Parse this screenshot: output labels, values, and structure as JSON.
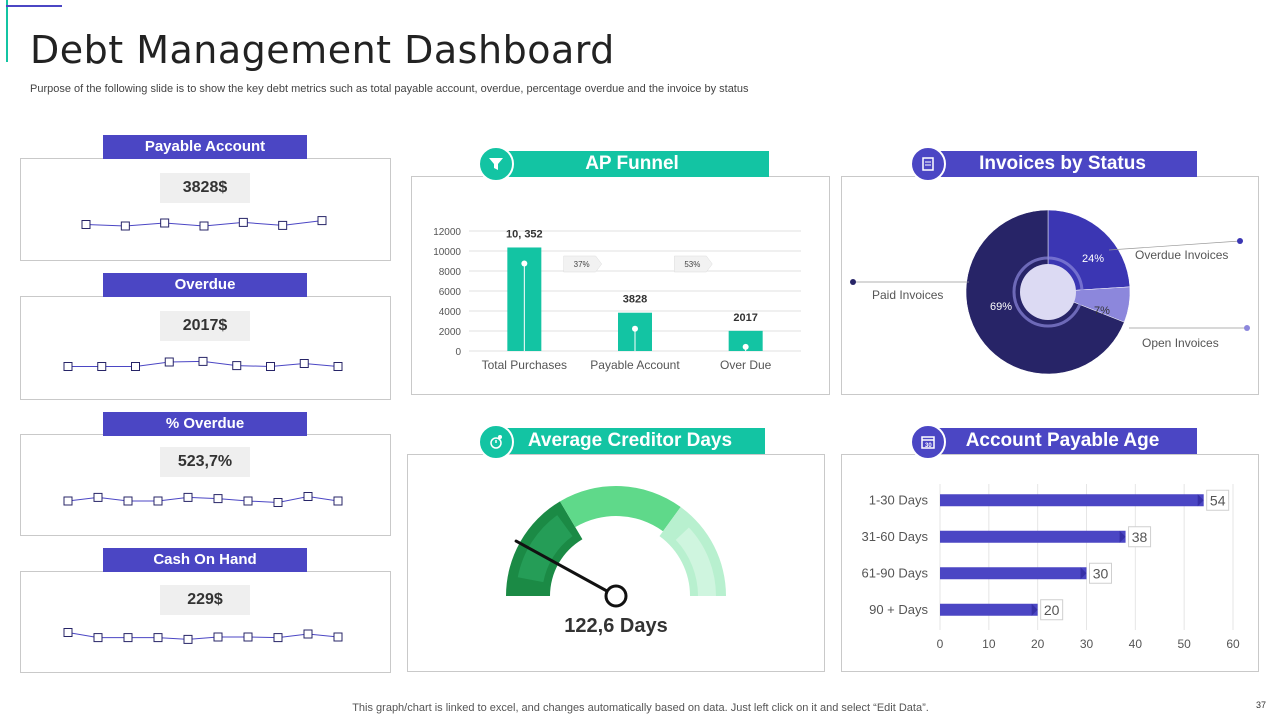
{
  "page": {
    "title": "Debt Management Dashboard",
    "subtitle": "Purpose of the following slide is to show the key debt metrics such as total payable account, overdue, percentage overdue and the invoice by status",
    "footer": "This graph/chart is linked to excel,  and changes automatically based on data. Just left click on it and select “Edit Data”.",
    "page_number": "37"
  },
  "colors": {
    "purple": "#4b46c4",
    "teal": "#13c4a3",
    "navy": "#272467",
    "gauge_dark": "#1b8a45",
    "gauge_mid": "#5fd98a",
    "gauge_light": "#b8f0cf"
  },
  "kpis": [
    {
      "label": "Payable Account",
      "value": "3828$",
      "spark": [
        0.55,
        0.5,
        0.6,
        0.5,
        0.62,
        0.52,
        0.68
      ]
    },
    {
      "label": "Overdue",
      "value": "2017$",
      "spark": [
        0.45,
        0.45,
        0.45,
        0.6,
        0.62,
        0.48,
        0.45,
        0.55,
        0.45
      ]
    },
    {
      "label": "% Overdue",
      "value": "523,7%",
      "spark": [
        0.5,
        0.62,
        0.5,
        0.5,
        0.62,
        0.58,
        0.5,
        0.45,
        0.65,
        0.5
      ]
    },
    {
      "label": "Cash On Hand",
      "value": "229$",
      "spark": [
        0.65,
        0.48,
        0.48,
        0.48,
        0.42,
        0.5,
        0.5,
        0.48,
        0.6,
        0.5
      ]
    }
  ],
  "ap_funnel": {
    "title": "AP Funnel",
    "icon": "funnel-icon"
  },
  "invoices_status": {
    "title": "Invoices by Status",
    "icon": "invoice-icon"
  },
  "creditor_days": {
    "title": "Average Creditor Days",
    "icon": "clock-gear-icon",
    "value_label": "122,6 Days"
  },
  "ap_age": {
    "title": "Account Payable Age",
    "icon": "calendar-icon"
  },
  "chart_data": [
    {
      "type": "bar",
      "title": "AP Funnel",
      "categories": [
        "Total Purchases",
        "Payable Account",
        "Over Due"
      ],
      "values": [
        10352,
        3828,
        2017
      ],
      "value_labels": [
        "10, 352",
        "3828",
        "2017"
      ],
      "conversion_labels": [
        "37%",
        "53%"
      ],
      "ylim": [
        0,
        12000
      ],
      "yticks": [
        0,
        2000,
        4000,
        6000,
        8000,
        10000,
        12000
      ],
      "grid": true
    },
    {
      "type": "pie",
      "title": "Invoices by Status",
      "labels": [
        "Paid Invoices",
        "Overdue  Invoices",
        "Open Invoices"
      ],
      "values": [
        69,
        24,
        7
      ],
      "value_labels": [
        "69%",
        "24%",
        "7%"
      ]
    },
    {
      "type": "gauge",
      "title": "Average Creditor Days",
      "value": 122.6,
      "needle_fraction": 0.16,
      "bands": [
        "dark",
        "mid",
        "light"
      ]
    },
    {
      "type": "bar",
      "orientation": "horizontal",
      "title": "Account Payable Age",
      "categories": [
        "1-30 Days",
        "31-60 Days",
        "61-90 Days",
        "90 + Days"
      ],
      "values": [
        54,
        38,
        30,
        20
      ],
      "xlim": [
        0,
        60
      ],
      "xticks": [
        0,
        10,
        20,
        30,
        40,
        50,
        60
      ]
    }
  ]
}
